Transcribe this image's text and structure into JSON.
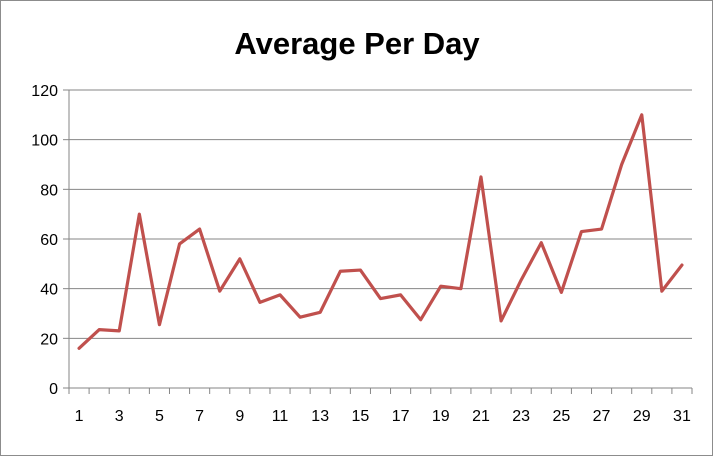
{
  "chart_data": {
    "type": "line",
    "title": "Average Per Day",
    "xlabel": "",
    "ylabel": "",
    "x": [
      1,
      2,
      3,
      4,
      5,
      6,
      7,
      8,
      9,
      10,
      11,
      12,
      13,
      14,
      15,
      16,
      17,
      18,
      19,
      20,
      21,
      22,
      23,
      24,
      25,
      26,
      27,
      28,
      29,
      30,
      31
    ],
    "x_tick_labels": [
      "1",
      "3",
      "5",
      "7",
      "9",
      "11",
      "13",
      "15",
      "17",
      "19",
      "21",
      "23",
      "25",
      "27",
      "29",
      "31"
    ],
    "y_tick_labels": [
      "0",
      "20",
      "40",
      "60",
      "80",
      "100",
      "120"
    ],
    "ylim": [
      0,
      120
    ],
    "grid": true,
    "legend": "none",
    "series": [
      {
        "name": "",
        "color": "#c0504d",
        "values": [
          16,
          23.5,
          23,
          70,
          25.5,
          58,
          64,
          39,
          52,
          34.5,
          37.5,
          28.5,
          30.5,
          47,
          47.5,
          36,
          37.5,
          27.5,
          41,
          40,
          85,
          27,
          43.5,
          58.5,
          38.5,
          63,
          64,
          90,
          110,
          39,
          49.5
        ]
      }
    ]
  }
}
